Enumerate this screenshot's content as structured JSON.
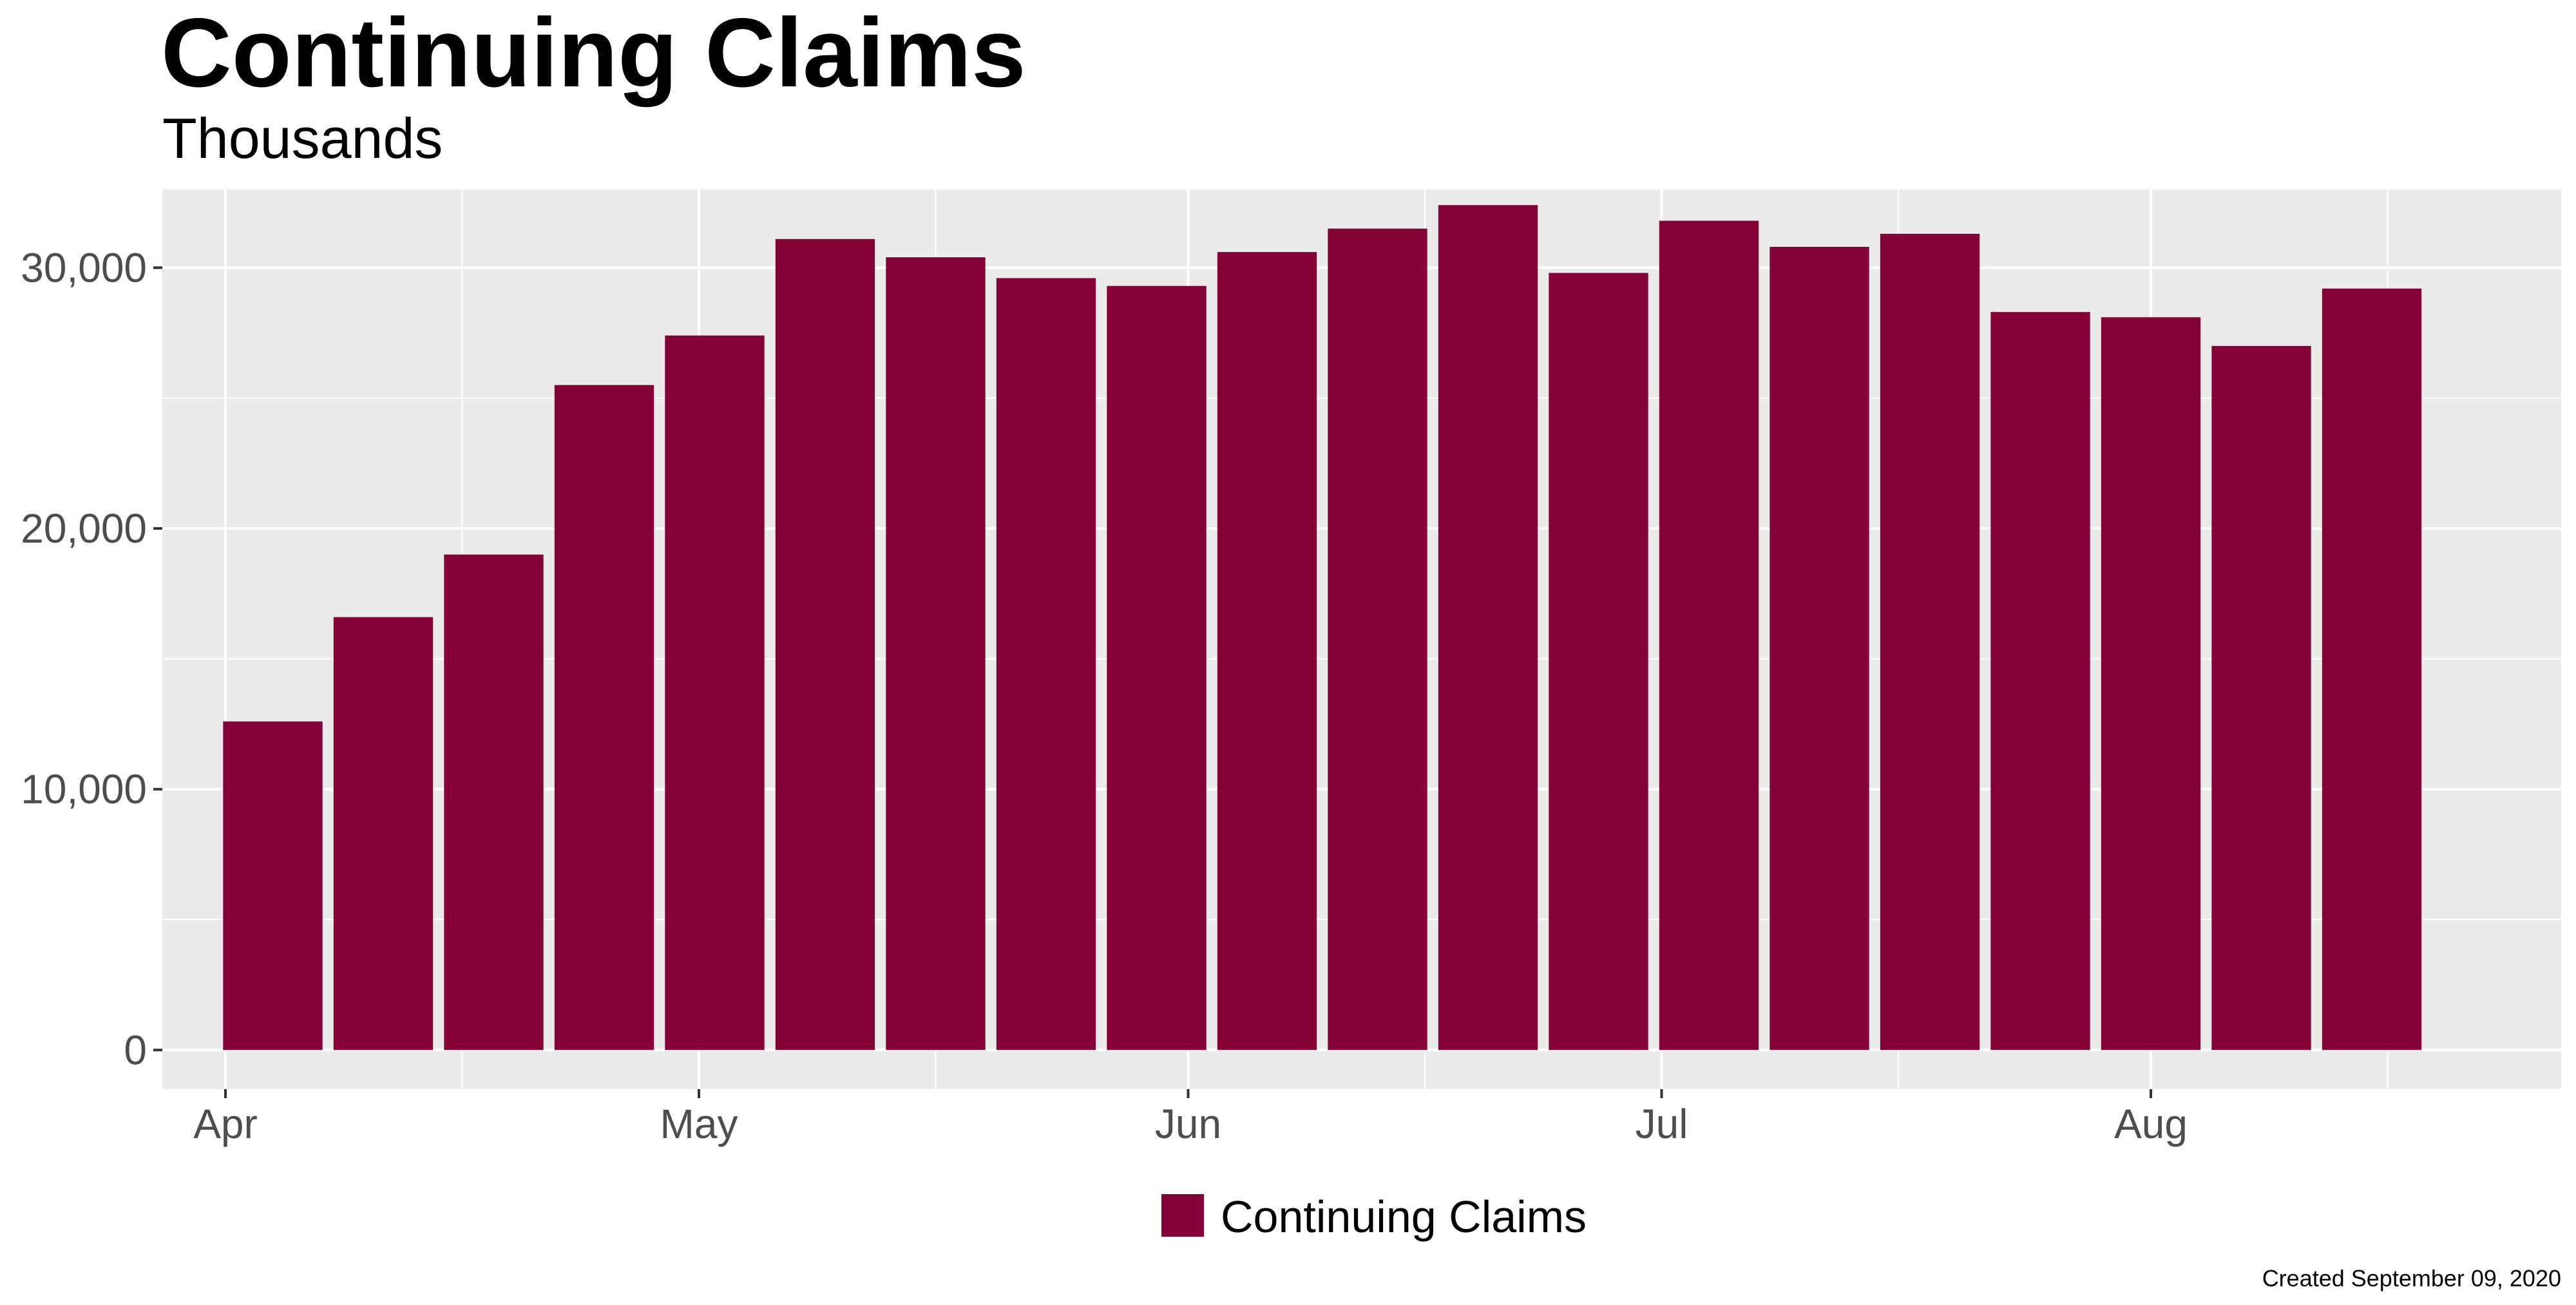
{
  "chart_data": {
    "type": "bar",
    "title": "Continuing Claims",
    "subtitle": "Thousands",
    "xlabel": "",
    "ylabel": "",
    "x_tick_labels": [
      "Apr",
      "May",
      "Jun",
      "Jul",
      "Aug"
    ],
    "y_tick_labels": [
      "0",
      "10,000",
      "20,000",
      "30,000"
    ],
    "y_ticks": [
      0,
      10000,
      20000,
      30000
    ],
    "ylim": [
      -1500,
      33000
    ],
    "xlim": [
      "2020-03-28",
      "2020-08-27"
    ],
    "grid": true,
    "legend_position": "bottom",
    "caption": "Created September 09, 2020",
    "colors": {
      "bar": "#850237",
      "panel": "#ebebeb",
      "grid": "#ffffff"
    },
    "x": [
      "2020-04-04",
      "2020-04-11",
      "2020-04-18",
      "2020-04-25",
      "2020-05-02",
      "2020-05-09",
      "2020-05-16",
      "2020-05-23",
      "2020-05-30",
      "2020-06-06",
      "2020-06-13",
      "2020-06-20",
      "2020-06-27",
      "2020-07-04",
      "2020-07-11",
      "2020-07-18",
      "2020-07-25",
      "2020-08-01",
      "2020-08-08",
      "2020-08-15"
    ],
    "series": [
      {
        "name": "Continuing Claims",
        "values": [
          12600,
          16600,
          19000,
          25500,
          27400,
          31100,
          30400,
          29600,
          29300,
          30600,
          31500,
          32400,
          29800,
          31800,
          30800,
          31300,
          28300,
          28100,
          27000,
          29200
        ]
      }
    ]
  }
}
